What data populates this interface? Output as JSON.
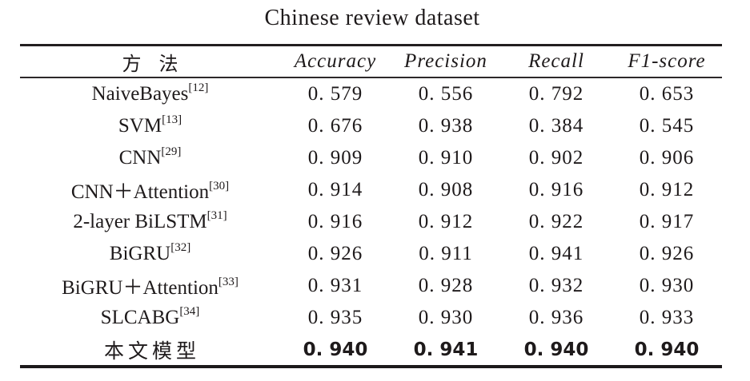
{
  "title": "Chinese review dataset",
  "colors": {
    "text": "#1e1a1b",
    "rule": "#231f20",
    "background": "#ffffff"
  },
  "table": {
    "headers": {
      "method": "方 法",
      "accuracy": "Accuracy",
      "precision": "Precision",
      "recall": "Recall",
      "f1": "F1-score"
    },
    "rows": [
      {
        "method": "NaiveBayes",
        "ref": "[12]",
        "accuracy": "0. 579",
        "precision": "0. 556",
        "recall": "0. 792",
        "f1": "0. 653"
      },
      {
        "method": "SVM",
        "ref": "[13]",
        "accuracy": "0. 676",
        "precision": "0. 938",
        "recall": "0. 384",
        "f1": "0. 545"
      },
      {
        "method": "CNN",
        "ref": "[29]",
        "accuracy": "0. 909",
        "precision": "0. 910",
        "recall": "0. 902",
        "f1": "0. 906"
      },
      {
        "method": "CNN＋Attention",
        "ref": "[30]",
        "accuracy": "0. 914",
        "precision": "0. 908",
        "recall": "0. 916",
        "f1": "0. 912"
      },
      {
        "method": "2-layer BiLSTM",
        "ref": "[31]",
        "accuracy": "0. 916",
        "precision": "0. 912",
        "recall": "0. 922",
        "f1": "0. 917"
      },
      {
        "method": "BiGRU",
        "ref": "[32]",
        "accuracy": "0. 926",
        "precision": "0. 911",
        "recall": "0. 941",
        "f1": "0. 926"
      },
      {
        "method": "BiGRU＋Attention",
        "ref": "[33]",
        "accuracy": "0. 931",
        "precision": "0. 928",
        "recall": "0. 932",
        "f1": "0. 930"
      },
      {
        "method": "SLCABG",
        "ref": "[34]",
        "accuracy": "0. 935",
        "precision": "0. 930",
        "recall": "0. 936",
        "f1": "0. 933"
      },
      {
        "method": "本文模型",
        "ref": "",
        "accuracy": "0. 940",
        "precision": "0. 941",
        "recall": "0. 940",
        "f1": "0. 940"
      }
    ]
  },
  "chart_data": {
    "type": "table",
    "title": "Chinese review dataset",
    "columns": [
      "方 法",
      "Accuracy",
      "Precision",
      "Recall",
      "F1-score"
    ],
    "categories": [
      "NaiveBayes[12]",
      "SVM[13]",
      "CNN[29]",
      "CNN＋Attention[30]",
      "2-layer BiLSTM[31]",
      "BiGRU[32]",
      "BiGRU＋Attention[33]",
      "SLCABG[34]",
      "本文模型"
    ],
    "series": [
      {
        "name": "Accuracy",
        "values": [
          0.579,
          0.676,
          0.909,
          0.914,
          0.916,
          0.926,
          0.931,
          0.935,
          0.94
        ]
      },
      {
        "name": "Precision",
        "values": [
          0.556,
          0.938,
          0.91,
          0.908,
          0.912,
          0.911,
          0.928,
          0.93,
          0.941
        ]
      },
      {
        "name": "Recall",
        "values": [
          0.792,
          0.384,
          0.902,
          0.916,
          0.922,
          0.941,
          0.932,
          0.936,
          0.94
        ]
      },
      {
        "name": "F1-score",
        "values": [
          0.653,
          0.545,
          0.906,
          0.912,
          0.917,
          0.926,
          0.93,
          0.933,
          0.94
        ]
      }
    ]
  }
}
